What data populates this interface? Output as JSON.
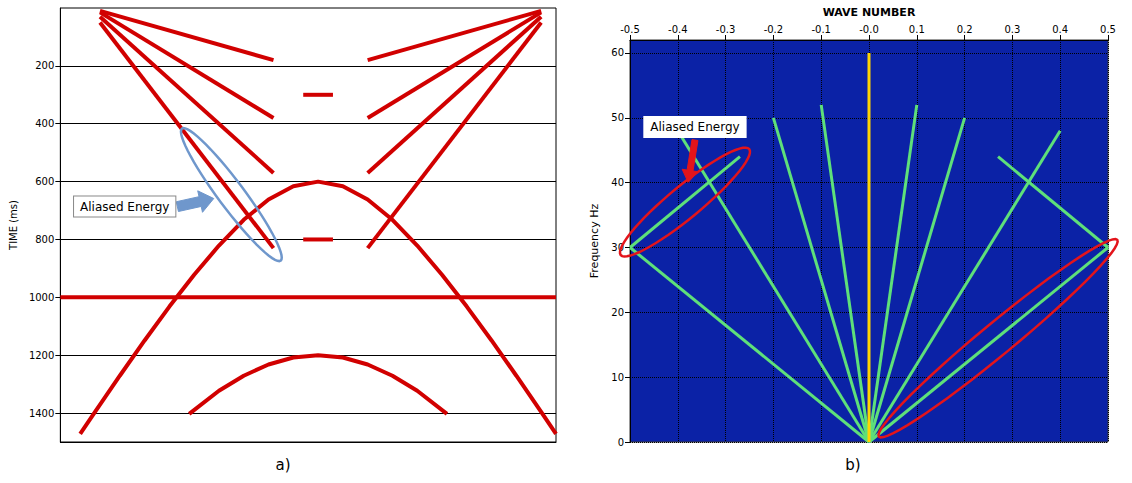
{
  "chart_data": [
    {
      "type": "seismic",
      "caption": "a)",
      "ylabel": "TIME (ms)",
      "xlim": [
        0,
        100
      ],
      "ylim": [
        0,
        1500
      ],
      "yticks": [
        200,
        400,
        600,
        800,
        1000,
        1200,
        1400
      ],
      "grid": true,
      "tick_labels": "y",
      "color": "#d10000",
      "series": [
        {
          "x": [
            8,
            43
          ],
          "values": [
            10,
            180
          ]
        },
        {
          "x": [
            8,
            43
          ],
          "values": [
            15,
            380
          ]
        },
        {
          "x": [
            8,
            43
          ],
          "values": [
            30,
            570
          ]
        },
        {
          "x": [
            8,
            43
          ],
          "values": [
            50,
            830
          ]
        },
        {
          "x": [
            62,
            97
          ],
          "values": [
            180,
            10
          ]
        },
        {
          "x": [
            62,
            97
          ],
          "values": [
            380,
            15
          ]
        },
        {
          "x": [
            62,
            97
          ],
          "values": [
            570,
            30
          ]
        },
        {
          "x": [
            62,
            97
          ],
          "values": [
            830,
            50
          ]
        },
        {
          "x": [
            0,
            100
          ],
          "values": [
            1000,
            1000
          ]
        },
        {
          "x": [
            49,
            55
          ],
          "values": [
            300,
            300
          ]
        },
        {
          "x": [
            49,
            55
          ],
          "values": [
            800,
            800
          ]
        },
        {
          "x": [
            4,
            7,
            12,
            17,
            22,
            27,
            32,
            37,
            42,
            47,
            52,
            57,
            62,
            67,
            72,
            77,
            82,
            87,
            92,
            97,
            100
          ],
          "values": [
            1472,
            1396,
            1271,
            1149,
            1032,
            922,
            821,
            732,
            662,
            616,
            600,
            616,
            662,
            732,
            821,
            922,
            1032,
            1149,
            1271,
            1396,
            1472
          ]
        },
        {
          "x": [
            26,
            32,
            37,
            42,
            47,
            52,
            57,
            62,
            67,
            72,
            78
          ],
          "values": [
            1403,
            1323,
            1271,
            1232,
            1208,
            1200,
            1208,
            1232,
            1271,
            1323,
            1403
          ]
        }
      ],
      "annotations": [
        {
          "text": "Aliased Energy",
          "color": "#6f97cc",
          "circled": [
            [
              [
                26,
                450
              ],
              [
                43,
                840
              ]
            ]
          ]
        }
      ]
    },
    {
      "type": "fk",
      "caption": "b)",
      "xlabel": "WAVE NUMBER",
      "ylabel": "Frequency Hz",
      "xlim": [
        -0.5,
        0.5
      ],
      "ylim": [
        0,
        62
      ],
      "xticks": [
        -0.5,
        -0.4,
        -0.3,
        -0.2,
        -0.1,
        {
          "value": 0,
          "label": "-0.0"
        },
        0.1,
        0.2,
        0.3,
        0.4,
        0.5
      ],
      "yticks": [
        0,
        10,
        20,
        30,
        40,
        50,
        60
      ],
      "grid": true,
      "color": "#5ee07a",
      "series": [
        {
          "x": [
            0,
            0.5
          ],
          "values": [
            0,
            30
          ]
        },
        {
          "x": [
            -0.5,
            -0.27
          ],
          "values": [
            30,
            44
          ]
        },
        {
          "x": [
            0,
            -0.5
          ],
          "values": [
            0,
            30
          ]
        },
        {
          "x": [
            0.5,
            0.27
          ],
          "values": [
            30,
            44
          ]
        },
        {
          "x": [
            0,
            -0.4
          ],
          "values": [
            0,
            48
          ]
        },
        {
          "x": [
            0,
            0.4
          ],
          "values": [
            0,
            48
          ]
        },
        {
          "x": [
            0,
            -0.2
          ],
          "values": [
            0,
            50
          ]
        },
        {
          "x": [
            0,
            0.2
          ],
          "values": [
            0,
            50
          ]
        },
        {
          "x": [
            0,
            -0.1
          ],
          "values": [
            0,
            52
          ]
        },
        {
          "x": [
            0,
            0.1
          ],
          "values": [
            0,
            52
          ]
        },
        {
          "x": [
            0,
            0
          ],
          "values": [
            0,
            60
          ],
          "color": "#ffd400"
        }
      ],
      "annotations": [
        {
          "text": "Aliased Energy",
          "color": "#e3141b",
          "circled": [
            [
              [
                -0.5,
                30
              ],
              [
                -0.27,
                44
              ]
            ],
            [
              [
                0.04,
                2
              ],
              [
                0.5,
                30
              ]
            ]
          ]
        }
      ]
    }
  ]
}
